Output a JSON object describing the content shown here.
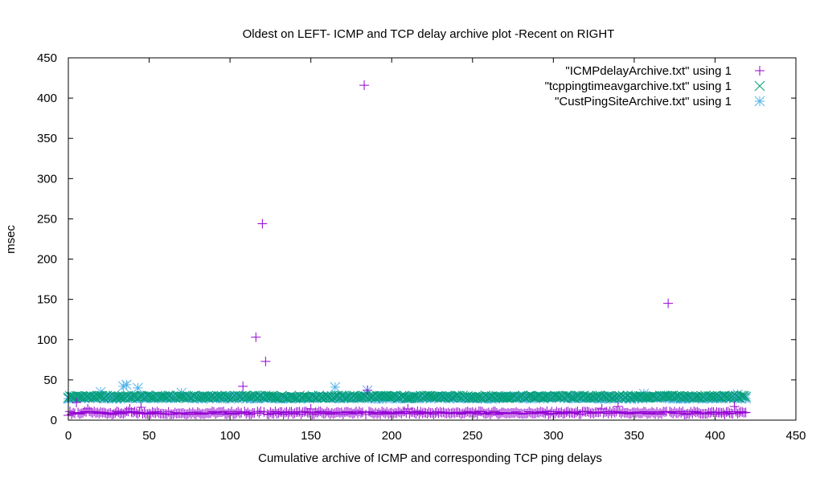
{
  "chart_data": {
    "type": "scatter",
    "title": "Oldest on LEFT- ICMP and TCP delay archive plot -Recent on RIGHT",
    "xlabel": "Cumulative archive of ICMP and corresponding TCP ping delays",
    "ylabel": "msec",
    "xlim": [
      0,
      450
    ],
    "ylim": [
      0,
      450
    ],
    "xticks": [
      0,
      50,
      100,
      150,
      200,
      250,
      300,
      350,
      400,
      450
    ],
    "yticks": [
      0,
      50,
      100,
      150,
      200,
      250,
      300,
      350,
      400,
      450
    ],
    "grid": false,
    "legend_position": "top-right",
    "series": [
      {
        "name": "\"ICMPdelayArchive.txt\" using 1",
        "marker": "plus",
        "color": "#9400d3",
        "n_points": 420,
        "baseline": 9,
        "outliers": [
          {
            "x": 0,
            "y": 6
          },
          {
            "x": 5,
            "y": 22
          },
          {
            "x": 12,
            "y": 14
          },
          {
            "x": 38,
            "y": 14
          },
          {
            "x": 45,
            "y": 16
          },
          {
            "x": 108,
            "y": 42
          },
          {
            "x": 116,
            "y": 103
          },
          {
            "x": 120,
            "y": 244
          },
          {
            "x": 122,
            "y": 73
          },
          {
            "x": 150,
            "y": 14
          },
          {
            "x": 183,
            "y": 416
          },
          {
            "x": 185,
            "y": 37
          },
          {
            "x": 210,
            "y": 14
          },
          {
            "x": 330,
            "y": 14
          },
          {
            "x": 340,
            "y": 17
          },
          {
            "x": 371,
            "y": 145
          },
          {
            "x": 412,
            "y": 17
          }
        ]
      },
      {
        "name": "\"tcppingtimeavgarchive.txt\" using 1",
        "marker": "x",
        "color": "#009e73",
        "n_points": 420,
        "baseline": 29
      },
      {
        "name": "\"CustPingSiteArchive.txt\" using 1",
        "marker": "star",
        "color": "#56b4e9",
        "n_points": 420,
        "baseline": 28,
        "outliers": [
          {
            "x": 20,
            "y": 35
          },
          {
            "x": 34,
            "y": 42
          },
          {
            "x": 36,
            "y": 44
          },
          {
            "x": 43,
            "y": 40
          },
          {
            "x": 70,
            "y": 34
          },
          {
            "x": 165,
            "y": 41
          },
          {
            "x": 185,
            "y": 37
          },
          {
            "x": 356,
            "y": 33
          },
          {
            "x": 414,
            "y": 32
          }
        ]
      }
    ]
  }
}
